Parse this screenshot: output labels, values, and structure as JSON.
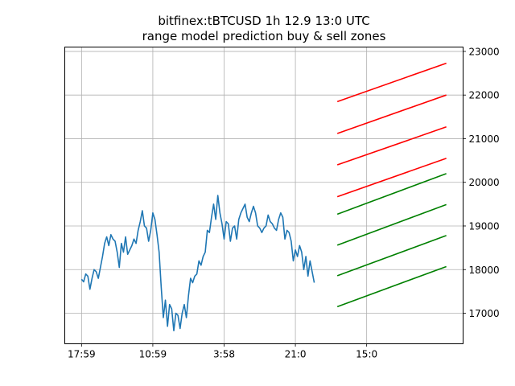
{
  "chart_data": {
    "type": "line",
    "title": "bitfinex:tBTCUSD 1h 12.9 13:0 UTC",
    "subtitle": "range model prediction buy & sell zones",
    "x_tick_labels": [
      "17:59",
      "10:59",
      "3:58",
      "21:0",
      "15:0"
    ],
    "x_tick_index": [
      0,
      17,
      34,
      51,
      68
    ],
    "xlim": [
      -4,
      91
    ],
    "ylim": [
      16300,
      23100
    ],
    "y_ticks": [
      17000,
      18000,
      19000,
      20000,
      21000,
      22000,
      23000
    ],
    "y_axis_side": "right",
    "grid": true,
    "price_series": {
      "color": "#1f77b4",
      "values": [
        17780,
        17720,
        17900,
        17850,
        17550,
        17800,
        18000,
        17950,
        17800,
        18050,
        18300,
        18600,
        18750,
        18550,
        18800,
        18700,
        18650,
        18400,
        18050,
        18600,
        18400,
        18750,
        18350,
        18450,
        18550,
        18700,
        18600,
        18900,
        19100,
        19350,
        19000,
        18950,
        18650,
        18900,
        19300,
        19150,
        18800,
        18400,
        17600,
        16900,
        17300,
        16700,
        17200,
        17100,
        16600,
        17000,
        16950,
        16650,
        17000,
        17200,
        16900,
        17400,
        17800,
        17700,
        17850,
        17900,
        18200,
        18100,
        18300,
        18400,
        18900,
        18850,
        19200,
        19500,
        19150,
        19700,
        19300,
        19050,
        18700,
        19100,
        19050,
        18650,
        18950,
        19000,
        18700,
        19150,
        19300,
        19400,
        19500,
        19200,
        19100,
        19300,
        19450,
        19300,
        19000,
        18950,
        18850,
        18950,
        19000,
        19250,
        19100,
        19050,
        18950,
        18900,
        19150,
        19300,
        19200,
        18700,
        18900,
        18850,
        18650,
        18200,
        18450,
        18300,
        18550,
        18400,
        18000,
        18300,
        17850,
        18200,
        17950,
        17700
      ],
      "x_start": 0,
      "x_step": 0.5
    },
    "zones": [
      {
        "type": "sell",
        "color": "#ff0000",
        "x": [
          61,
          87
        ],
        "y": [
          21850,
          22730
        ]
      },
      {
        "type": "sell",
        "color": "#ff0000",
        "x": [
          61,
          87
        ],
        "y": [
          21120,
          22000
        ]
      },
      {
        "type": "sell",
        "color": "#ff0000",
        "x": [
          61,
          87
        ],
        "y": [
          20400,
          21270
        ]
      },
      {
        "type": "sell",
        "color": "#ff0000",
        "x": [
          61,
          87
        ],
        "y": [
          19670,
          20550
        ]
      },
      {
        "type": "buy",
        "color": "#008000",
        "x": [
          61,
          87
        ],
        "y": [
          19270,
          20200
        ]
      },
      {
        "type": "buy",
        "color": "#008000",
        "x": [
          61,
          87
        ],
        "y": [
          18560,
          19490
        ]
      },
      {
        "type": "buy",
        "color": "#008000",
        "x": [
          61,
          87
        ],
        "y": [
          17860,
          18780
        ]
      },
      {
        "type": "buy",
        "color": "#008000",
        "x": [
          61,
          87
        ],
        "y": [
          17150,
          18070
        ]
      }
    ]
  }
}
